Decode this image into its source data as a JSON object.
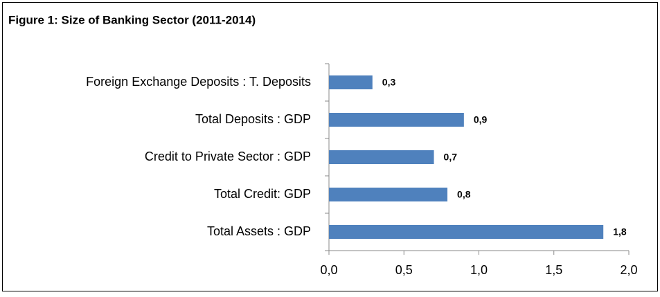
{
  "chart_data": {
    "type": "bar",
    "orientation": "horizontal",
    "title": "Figure 1: Size of Banking Sector (2011-2014)",
    "categories": [
      "Foreign Exchange Deposits : T. Deposits",
      "Total Deposits : GDP",
      "Credit to Private Sector : GDP",
      "Total Credit: GDP",
      "Total Assets : GDP"
    ],
    "values": [
      0.29,
      0.9,
      0.7,
      0.79,
      1.83
    ],
    "value_labels": [
      "0,3",
      "0,9",
      "0,7",
      "0,8",
      "1,8"
    ],
    "color": "#4f81bd",
    "xlim": [
      0,
      2
    ],
    "xticks": [
      {
        "value": 0,
        "label": "0,0"
      },
      {
        "value": 0.5,
        "label": "0,5"
      },
      {
        "value": 1,
        "label": "1,0"
      },
      {
        "value": 1.5,
        "label": "1,5"
      },
      {
        "value": 2,
        "label": "2,0"
      }
    ]
  }
}
